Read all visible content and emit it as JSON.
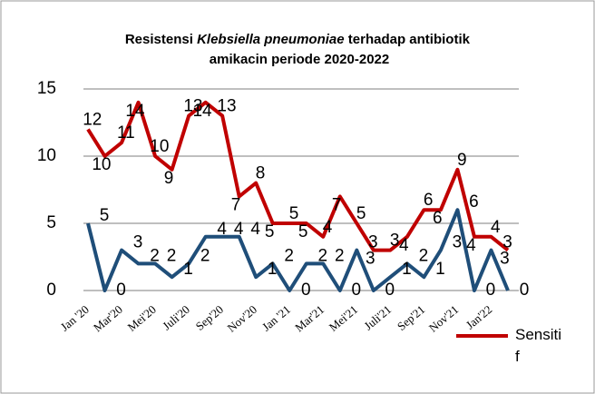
{
  "chart_data": {
    "type": "line",
    "title": [
      "Resistensi ",
      "Klebsiella pneumoniae",
      " terhadap antibiotik",
      "amikacin periode 2020-2022"
    ],
    "categories": [
      "Jan '20",
      null,
      "Mar'20",
      null,
      "Mei'20",
      null,
      "Juli'20",
      null,
      "Sep'20",
      null,
      "Nov'20",
      null,
      "Jan '21",
      null,
      "Mar'21",
      null,
      "Mei'21",
      null,
      "Juli'21",
      null,
      "Sep'21",
      null,
      "Nov'21",
      null,
      "Jan'22",
      null
    ],
    "series": [
      {
        "name": "Sensitif",
        "color": "#c00000",
        "values": [
          12,
          10,
          11,
          14,
          10,
          9,
          13,
          14,
          13,
          7,
          8,
          5,
          5,
          5,
          4,
          7,
          5,
          3,
          3,
          4,
          6,
          6,
          9,
          4,
          4,
          3
        ]
      },
      {
        "color": "#1f4e79",
        "values": [
          5,
          0,
          3,
          2,
          2,
          1,
          2,
          4,
          4,
          4,
          1,
          2,
          0,
          2,
          2,
          0,
          3,
          0,
          1,
          2,
          1,
          3,
          6,
          0,
          3,
          0
        ]
      }
    ],
    "ylim": [
      0,
      15
    ],
    "yticks": [
      0,
      5,
      10,
      15
    ],
    "grid": true,
    "legend": "right"
  }
}
